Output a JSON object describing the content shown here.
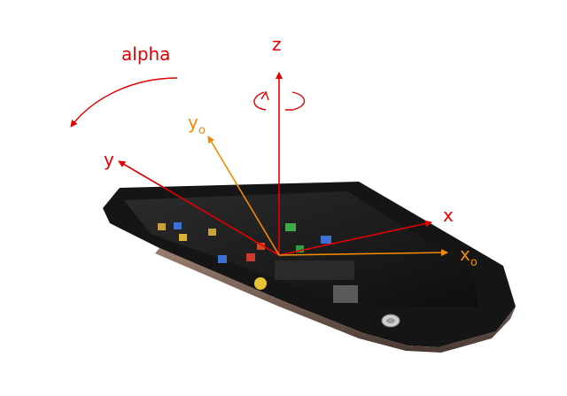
{
  "labels": {
    "alpha": "alpha",
    "z": "z",
    "y": "y",
    "x": "x",
    "y0_main": "y",
    "y0_sub": "o",
    "x0_main": "x",
    "x0_sub": "o"
  },
  "colors": {
    "device_axes": "#e00000",
    "earth_axes": "#f08a00",
    "phone_body": "#1a1a1a",
    "phone_chin": "#8a6b5c"
  },
  "icons": [
    "phone-icon",
    "rotation-arrow-icon",
    "curved-arrow-icon"
  ]
}
